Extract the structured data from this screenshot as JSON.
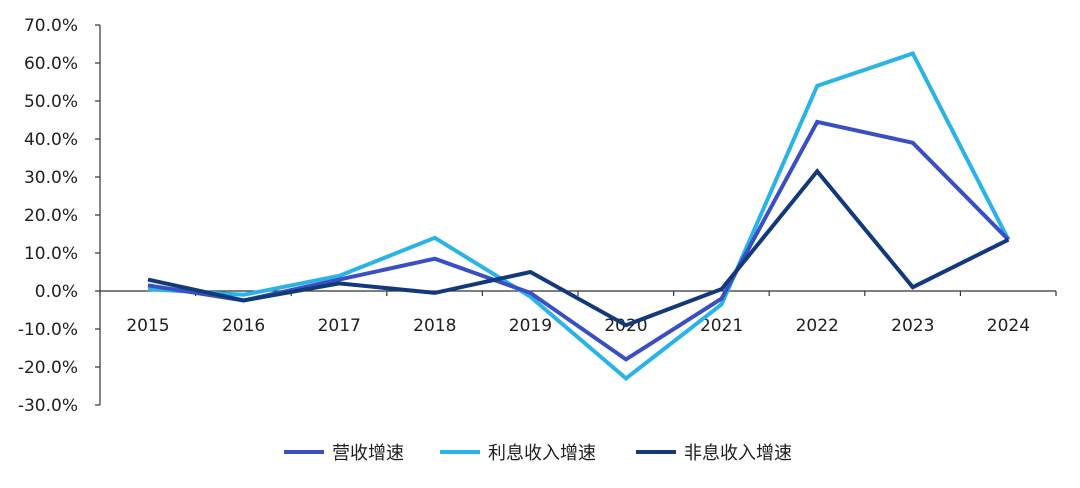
{
  "chart_data": {
    "type": "line",
    "categories": [
      "2015",
      "2016",
      "2017",
      "2018",
      "2019",
      "2020",
      "2021",
      "2022",
      "2023",
      "2024"
    ],
    "ylim": [
      -30,
      70
    ],
    "y_ticks": [
      70,
      60,
      50,
      40,
      30,
      20,
      10,
      0,
      -10,
      -20,
      -30
    ],
    "y_tick_labels": [
      "70.0%",
      "60.0%",
      "50.0%",
      "40.0%",
      "30.0%",
      "20.0%",
      "10.0%",
      "0.0%",
      "-10.0%",
      "-20.0%",
      "-30.0%"
    ],
    "grid": false,
    "legend_position": "bottom",
    "series": [
      {
        "name": "营收增速",
        "color": "#3a4fc4",
        "values": [
          1.5,
          -2.5,
          3.0,
          8.5,
          -0.5,
          -18.0,
          -2.0,
          44.5,
          39.0,
          13.5
        ]
      },
      {
        "name": "利息收入增速",
        "color": "#29b3e6",
        "values": [
          0.5,
          -1.0,
          4.0,
          14.0,
          -1.5,
          -23.0,
          -3.5,
          54.0,
          62.5,
          13.5
        ]
      },
      {
        "name": "非息收入增速",
        "color": "#123a7a",
        "values": [
          3.0,
          -2.5,
          2.0,
          -0.5,
          5.0,
          -9.0,
          0.5,
          31.5,
          1.0,
          13.5
        ]
      }
    ]
  }
}
